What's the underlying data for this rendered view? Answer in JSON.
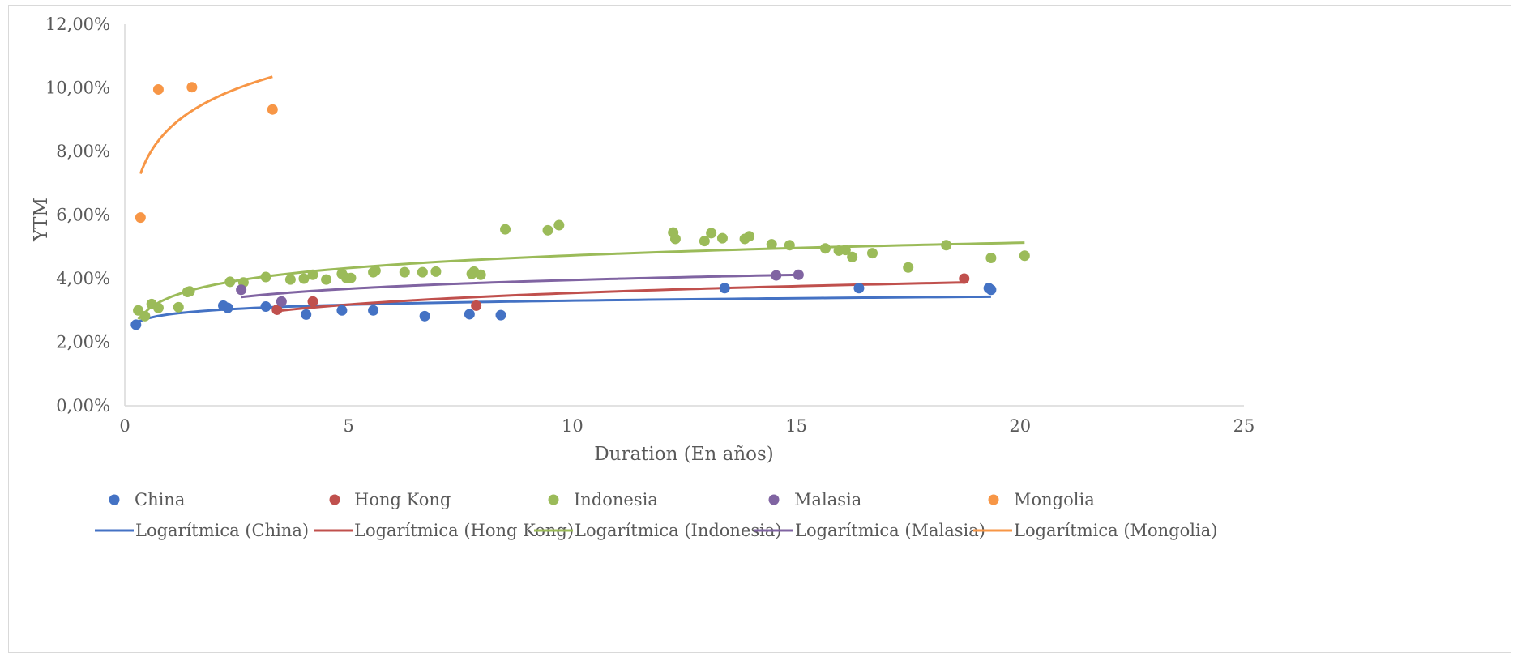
{
  "chart_data": {
    "type": "scatter",
    "title": "",
    "xlabel": "Duration (En años)",
    "ylabel": "YTM",
    "xlim": [
      0,
      25
    ],
    "ylim": [
      0,
      12
    ],
    "x_ticks": [
      0,
      5,
      10,
      15,
      20,
      25
    ],
    "x_tick_labels": [
      "0",
      "5",
      "10",
      "15",
      "20",
      "25"
    ],
    "y_ticks": [
      0,
      2,
      4,
      6,
      8,
      10,
      12
    ],
    "y_tick_labels": [
      "0,00%",
      "2,00%",
      "4,00%",
      "6,00%",
      "8,00%",
      "10,00%",
      "12,00%"
    ],
    "grid": false,
    "legend_position": "bottom",
    "series": [
      {
        "name": "China",
        "color": "#4472C4",
        "points": [
          [
            0.25,
            2.55
          ],
          [
            2.2,
            3.15
          ],
          [
            2.3,
            3.08
          ],
          [
            3.15,
            3.12
          ],
          [
            4.05,
            2.87
          ],
          [
            4.85,
            3.0
          ],
          [
            5.55,
            3.0
          ],
          [
            6.7,
            2.82
          ],
          [
            7.7,
            2.88
          ],
          [
            8.4,
            2.85
          ],
          [
            13.4,
            3.7
          ],
          [
            16.4,
            3.7
          ],
          [
            19.3,
            3.7
          ],
          [
            19.35,
            3.65
          ]
        ]
      },
      {
        "name": "Hong Kong",
        "color": "#C0504D",
        "points": [
          [
            3.4,
            3.02
          ],
          [
            4.2,
            3.28
          ],
          [
            7.85,
            3.15
          ],
          [
            18.75,
            4.0
          ]
        ]
      },
      {
        "name": "Indonesia",
        "color": "#9BBB59",
        "points": [
          [
            0.3,
            3.0
          ],
          [
            0.45,
            2.82
          ],
          [
            0.6,
            3.2
          ],
          [
            0.75,
            3.08
          ],
          [
            1.2,
            3.1
          ],
          [
            1.4,
            3.58
          ],
          [
            1.45,
            3.6
          ],
          [
            2.35,
            3.9
          ],
          [
            2.65,
            3.88
          ],
          [
            3.15,
            4.05
          ],
          [
            3.7,
            3.97
          ],
          [
            4.0,
            4.0
          ],
          [
            4.2,
            4.12
          ],
          [
            4.5,
            3.97
          ],
          [
            4.85,
            4.15
          ],
          [
            4.95,
            4.02
          ],
          [
            5.05,
            4.02
          ],
          [
            5.55,
            4.2
          ],
          [
            5.6,
            4.25
          ],
          [
            6.25,
            4.2
          ],
          [
            6.65,
            4.2
          ],
          [
            6.95,
            4.22
          ],
          [
            7.75,
            4.15
          ],
          [
            7.8,
            4.22
          ],
          [
            7.95,
            4.12
          ],
          [
            8.5,
            5.55
          ],
          [
            9.45,
            5.52
          ],
          [
            9.7,
            5.68
          ],
          [
            12.25,
            5.45
          ],
          [
            12.3,
            5.25
          ],
          [
            12.95,
            5.18
          ],
          [
            13.1,
            5.43
          ],
          [
            13.35,
            5.27
          ],
          [
            13.85,
            5.25
          ],
          [
            13.95,
            5.33
          ],
          [
            14.45,
            5.08
          ],
          [
            14.85,
            5.05
          ],
          [
            15.65,
            4.95
          ],
          [
            15.95,
            4.88
          ],
          [
            16.1,
            4.9
          ],
          [
            16.25,
            4.68
          ],
          [
            16.7,
            4.8
          ],
          [
            17.5,
            4.35
          ],
          [
            18.35,
            5.05
          ],
          [
            19.35,
            4.65
          ],
          [
            20.1,
            4.72
          ]
        ]
      },
      {
        "name": "Malasia",
        "color": "#8064A2",
        "points": [
          [
            2.6,
            3.65
          ],
          [
            3.5,
            3.28
          ],
          [
            14.55,
            4.1
          ],
          [
            15.05,
            4.12
          ]
        ]
      },
      {
        "name": "Mongolia",
        "color": "#F79646",
        "points": [
          [
            0.35,
            5.92
          ],
          [
            0.75,
            9.95
          ],
          [
            1.5,
            10.02
          ],
          [
            3.3,
            9.32
          ]
        ]
      }
    ],
    "trendlines": [
      {
        "name": "Logarítmica (China)",
        "color": "#4472C4",
        "type": "logarithmic",
        "x_range": [
          0.25,
          19.35
        ],
        "y_start": 2.62,
        "y_end": 3.43
      },
      {
        "name": "Logarítmica (Hong Kong)",
        "color": "#C0504D",
        "type": "logarithmic",
        "x_range": [
          3.4,
          18.75
        ],
        "y_start": 2.98,
        "y_end": 3.88
      },
      {
        "name": "Logarítmica (Indonesia)",
        "color": "#9BBB59",
        "type": "logarithmic",
        "x_range": [
          0.3,
          20.1
        ],
        "y_start": 2.72,
        "y_end": 5.13
      },
      {
        "name": "Logarítmica (Malasia)",
        "color": "#8064A2",
        "type": "logarithmic",
        "x_range": [
          2.6,
          15.05
        ],
        "y_start": 3.42,
        "y_end": 4.12
      },
      {
        "name": "Logarítmica (Mongolia)",
        "color": "#F79646",
        "type": "logarithmic",
        "x_range": [
          0.35,
          3.3
        ],
        "y_start": 7.3,
        "y_end": 10.35
      }
    ]
  }
}
